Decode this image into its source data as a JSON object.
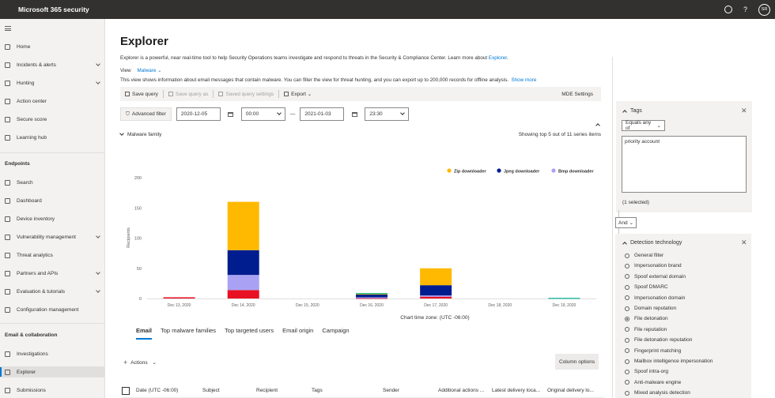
{
  "app": {
    "title": "Microsoft 365 security",
    "avatar": "SR",
    "help": "?"
  },
  "sidebar": {
    "items": [
      {
        "label": "Home",
        "chevron": false
      },
      {
        "label": "Incidents & alerts",
        "chevron": true
      },
      {
        "label": "Hunting",
        "chevron": true
      },
      {
        "label": "Action center",
        "chevron": false
      },
      {
        "label": "Secure score",
        "chevron": false
      },
      {
        "label": "Learning hub",
        "chevron": false
      }
    ],
    "section_endpoints": "Endpoints",
    "endpoints_items": [
      {
        "label": "Search",
        "chevron": false
      },
      {
        "label": "Dashboard",
        "chevron": false
      },
      {
        "label": "Device inventory",
        "chevron": false
      },
      {
        "label": "Vulnerability management",
        "chevron": true
      },
      {
        "label": "Threat analytics",
        "chevron": false
      },
      {
        "label": "Partners and APIs",
        "chevron": true
      },
      {
        "label": "Evaluation & tutorials",
        "chevron": true
      },
      {
        "label": "Configuration management",
        "chevron": false
      }
    ],
    "section_email": "Email & collaboration",
    "email_items": [
      {
        "label": "Investigations",
        "chevron": false
      },
      {
        "label": "Explorer",
        "chevron": false,
        "active": true
      },
      {
        "label": "Submissions",
        "chevron": false
      }
    ]
  },
  "page": {
    "title": "Explorer",
    "description": "Explorer is a powerful, near real-time tool to help Security Operations teams investigate and respond to threats in the Security & Compliance Center. Learn more about ",
    "description_link": "Explorer",
    "description_end": ".",
    "view_label": "View",
    "view_value": "Malware",
    "view_desc": "This view shows information about email messages that contain malware. You can filter the view for threat hunting, and you can export up to 200,000 records for offline analysis.",
    "show_more": "Show more"
  },
  "toolbar": {
    "save_query": "Save query",
    "save_query_as": "Save query as",
    "saved_query_settings": "Saved query settings",
    "export": "Export",
    "mde_settings": "MDE Settings"
  },
  "filters": {
    "advanced": "Advanced filter",
    "start_date": "2020-12-05",
    "start_time": "00:00",
    "dash": "—",
    "end_date": "2021-01-03",
    "end_time": "23:30"
  },
  "family": {
    "label": "Malware family",
    "showing": "Showing top 5 out of 11 series items"
  },
  "chart_data": {
    "type": "bar",
    "stacked": true,
    "ylabel": "Recipients",
    "xlabel": "Chart time zone: (UTC -06:00)",
    "ylim": [
      0,
      200
    ],
    "yticks": [
      0,
      50,
      100,
      150,
      200
    ],
    "categories": [
      "Dec 13, 2020",
      "Dec 14, 2020",
      "Dec 15, 2020",
      "Dec 16, 2020",
      "Dec 17, 2020",
      "Dec 18, 2020",
      "Dec 19, 2020"
    ],
    "series": [
      {
        "name": "Zip downloader",
        "color": "#ffb900",
        "values": [
          0,
          80,
          0,
          1,
          28,
          0,
          0
        ]
      },
      {
        "name": "Jpeg downloader",
        "color": "#001d8f",
        "values": [
          0,
          41,
          0,
          5,
          17,
          0,
          0
        ]
      },
      {
        "name": "Bmp downloader",
        "color": "#a9a2f4",
        "values": [
          0,
          25,
          0,
          1,
          2,
          0,
          0
        ]
      },
      {
        "name": "",
        "color": "#e81123",
        "values": [
          2,
          14,
          0,
          1,
          3,
          0,
          0
        ]
      },
      {
        "name": "",
        "color": "#00b294",
        "values": [
          0,
          0,
          0,
          1,
          0,
          0,
          1
        ]
      }
    ],
    "legend_position": "top-right"
  },
  "tabs": [
    "Email",
    "Top malware families",
    "Top targeted users",
    "Email origin",
    "Campaign"
  ],
  "table": {
    "actions": "Actions",
    "column_options": "Column options",
    "headers": [
      "Date (UTC -06:00)",
      "Subject",
      "Recipient",
      "Tags",
      "Sender",
      "Additional actions ...",
      "Latest delivery loca...",
      "Original delivery lo..."
    ]
  },
  "tags_pane": {
    "title": "Tags",
    "operator": "Equals any of",
    "value": "priority account",
    "count": "(1 selected)"
  },
  "and_label": "And",
  "detection_pane": {
    "title": "Detection technology",
    "options": [
      {
        "label": "General filter",
        "selected": false
      },
      {
        "label": "Impersonation brand",
        "selected": false
      },
      {
        "label": "Spoof external domain",
        "selected": false
      },
      {
        "label": "Spoof DMARC",
        "selected": false
      },
      {
        "label": "Impersonation domain",
        "selected": false
      },
      {
        "label": "Domain reputation",
        "selected": false
      },
      {
        "label": "File detonation",
        "selected": true
      },
      {
        "label": "File reputation",
        "selected": false
      },
      {
        "label": "File detonation reputation",
        "selected": false
      },
      {
        "label": "Fingerprint matching",
        "selected": false
      },
      {
        "label": "Mailbox intelligence impersonation",
        "selected": false
      },
      {
        "label": "Spoof intra-org",
        "selected": false
      },
      {
        "label": "Anti-malware engine",
        "selected": false
      },
      {
        "label": "Mixed analysis detection",
        "selected": false
      }
    ]
  }
}
